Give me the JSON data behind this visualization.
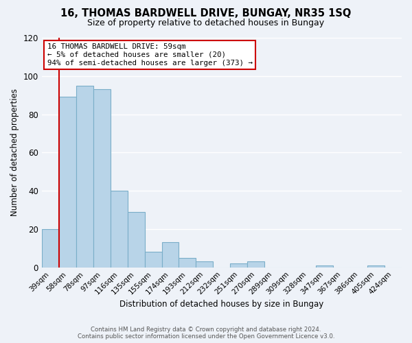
{
  "title": "16, THOMAS BARDWELL DRIVE, BUNGAY, NR35 1SQ",
  "subtitle": "Size of property relative to detached houses in Bungay",
  "xlabel": "Distribution of detached houses by size in Bungay",
  "ylabel": "Number of detached properties",
  "bar_color": "#b8d4e8",
  "bar_edge_color": "#7aaec8",
  "categories": [
    "39sqm",
    "58sqm",
    "78sqm",
    "97sqm",
    "116sqm",
    "135sqm",
    "155sqm",
    "174sqm",
    "193sqm",
    "212sqm",
    "232sqm",
    "251sqm",
    "270sqm",
    "289sqm",
    "309sqm",
    "328sqm",
    "347sqm",
    "367sqm",
    "386sqm",
    "405sqm",
    "424sqm"
  ],
  "values": [
    20,
    89,
    95,
    93,
    40,
    29,
    8,
    13,
    5,
    3,
    0,
    2,
    3,
    0,
    0,
    0,
    1,
    0,
    0,
    1,
    0
  ],
  "ylim": [
    0,
    120
  ],
  "yticks": [
    0,
    20,
    40,
    60,
    80,
    100,
    120
  ],
  "marker_color": "#cc0000",
  "annotation_title": "16 THOMAS BARDWELL DRIVE: 59sqm",
  "annotation_line1": "← 5% of detached houses are smaller (20)",
  "annotation_line2": "94% of semi-detached houses are larger (373) →",
  "annotation_box_color": "#ffffff",
  "annotation_box_edge": "#cc0000",
  "footer1": "Contains HM Land Registry data © Crown copyright and database right 2024.",
  "footer2": "Contains public sector information licensed under the Open Government Licence v3.0.",
  "background_color": "#eef2f8",
  "grid_color": "#ffffff"
}
